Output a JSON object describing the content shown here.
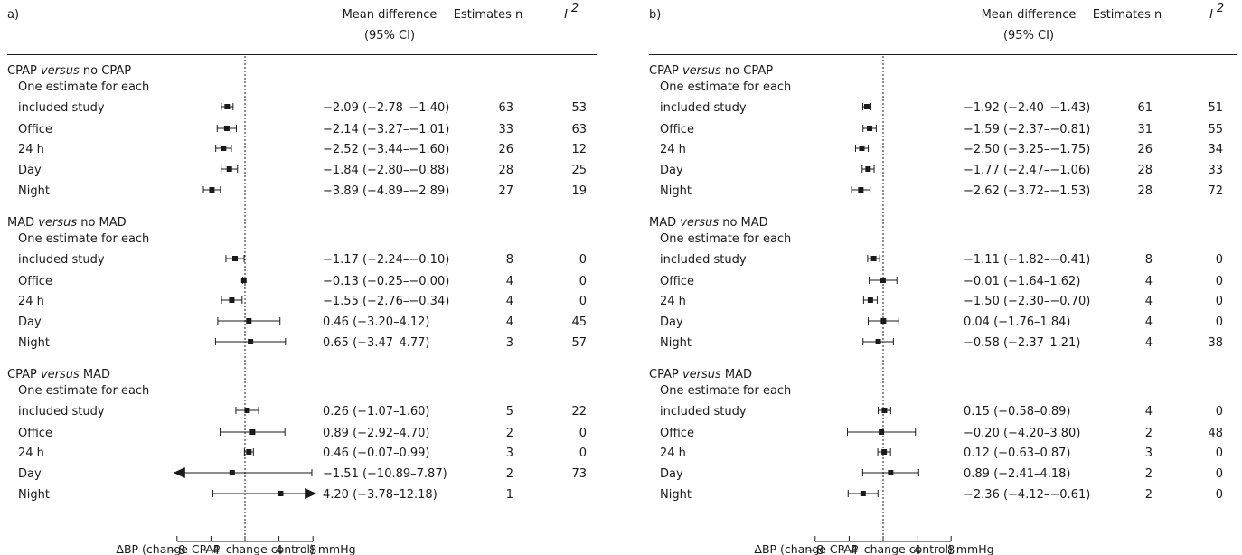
{
  "chart_data": [
    {
      "type": "forest",
      "panel_label": "a)",
      "columns": {
        "effect": "Mean difference",
        "effect_sub": "(95% CI)",
        "n": "Estimates n",
        "i2": "I",
        "i2_sup": "2"
      },
      "xlabel": "ΔBP (change CPAP–change control) mmHg",
      "xlim": [
        -8,
        8
      ],
      "ticks": [
        -8,
        -4,
        4,
        8
      ],
      "reference_line": 0,
      "groups": [
        {
          "label_pre": "CPAP ",
          "label_em": "versus",
          "label_post": " no CPAP",
          "rows": [
            {
              "label": [
                "One estimate for each",
                "included study"
              ],
              "mean": -2.09,
              "lo": -2.78,
              "hi": -1.4,
              "ci_text": "−2.09 (−2.78–−1.40)",
              "n": "63",
              "i2": "53"
            },
            {
              "label": [
                "Office"
              ],
              "mean": -2.14,
              "lo": -3.27,
              "hi": -1.01,
              "ci_text": "−2.14 (−3.27–−1.01)",
              "n": "33",
              "i2": "63"
            },
            {
              "label": [
                "24 h"
              ],
              "mean": -2.52,
              "lo": -3.44,
              "hi": -1.6,
              "ci_text": "−2.52 (−3.44–−1.60)",
              "n": "26",
              "i2": "12"
            },
            {
              "label": [
                "Day"
              ],
              "mean": -1.84,
              "lo": -2.8,
              "hi": -0.88,
              "ci_text": "−1.84 (−2.80–−0.88)",
              "n": "28",
              "i2": "25"
            },
            {
              "label": [
                "Night"
              ],
              "mean": -3.89,
              "lo": -4.89,
              "hi": -2.89,
              "ci_text": "−3.89 (−4.89–−2.89)",
              "n": "27",
              "i2": "19"
            }
          ]
        },
        {
          "label_pre": "MAD ",
          "label_em": "versus",
          "label_post": " no MAD",
          "rows": [
            {
              "label": [
                "One estimate for each",
                "included study"
              ],
              "mean": -1.17,
              "lo": -2.24,
              "hi": -0.1,
              "ci_text": "−1.17 (−2.24–−0.10)",
              "n": "8",
              "i2": "0"
            },
            {
              "label": [
                "Office"
              ],
              "mean": -0.13,
              "lo": -0.25,
              "hi": -0.0,
              "ci_text": "−0.13 (−0.25–−0.00)",
              "n": "4",
              "i2": "0"
            },
            {
              "label": [
                "24 h"
              ],
              "mean": -1.55,
              "lo": -2.76,
              "hi": -0.34,
              "ci_text": "−1.55 (−2.76–−0.34)",
              "n": "4",
              "i2": "0"
            },
            {
              "label": [
                "Day"
              ],
              "mean": 0.46,
              "lo": -3.2,
              "hi": 4.12,
              "ci_text": "0.46 (−3.20–4.12)",
              "n": "4",
              "i2": "45"
            },
            {
              "label": [
                "Night"
              ],
              "mean": 0.65,
              "lo": -3.47,
              "hi": 4.77,
              "ci_text": "0.65 (−3.47–4.77)",
              "n": "3",
              "i2": "57"
            }
          ]
        },
        {
          "label_pre": "CPAP ",
          "label_em": "versus",
          "label_post": " MAD",
          "rows": [
            {
              "label": [
                "One estimate for each",
                "included study"
              ],
              "mean": 0.26,
              "lo": -1.07,
              "hi": 1.6,
              "ci_text": "0.26 (−1.07–1.60)",
              "n": "5",
              "i2": "22"
            },
            {
              "label": [
                "Office"
              ],
              "mean": 0.89,
              "lo": -2.92,
              "hi": 4.7,
              "ci_text": "0.89 (−2.92–4.70)",
              "n": "2",
              "i2": "0"
            },
            {
              "label": [
                "24 h"
              ],
              "mean": 0.46,
              "lo": -0.07,
              "hi": 0.99,
              "ci_text": "0.46 (−0.07–0.99)",
              "n": "3",
              "i2": "0"
            },
            {
              "label": [
                "Day"
              ],
              "mean": -1.51,
              "lo": -10.89,
              "hi": 7.87,
              "ci_text": "−1.51 (−10.89–7.87)",
              "n": "2",
              "i2": "73"
            },
            {
              "label": [
                "Night"
              ],
              "mean": 4.2,
              "lo": -3.78,
              "hi": 12.18,
              "ci_text": "4.20 (−3.78–12.18)",
              "n": "1",
              "i2": ""
            }
          ]
        }
      ]
    },
    {
      "type": "forest",
      "panel_label": "b)",
      "columns": {
        "effect": "Mean difference",
        "effect_sub": "(95% CI)",
        "n": "Estimates n",
        "i2": "I",
        "i2_sup": "2"
      },
      "xlabel": "ΔBP (change CPAP–change control) mmHg",
      "xlim": [
        -8,
        8
      ],
      "ticks": [
        -8,
        -4,
        4,
        8
      ],
      "reference_line": 0,
      "groups": [
        {
          "label_pre": "CPAP ",
          "label_em": "versus",
          "label_post": " no CPAP",
          "rows": [
            {
              "label": [
                "One estimate for each",
                "included study"
              ],
              "mean": -1.92,
              "lo": -2.4,
              "hi": -1.43,
              "ci_text": "−1.92 (−2.40–−1.43)",
              "n": "61",
              "i2": "51"
            },
            {
              "label": [
                "Office"
              ],
              "mean": -1.59,
              "lo": -2.37,
              "hi": -0.81,
              "ci_text": "−1.59 (−2.37–−0.81)",
              "n": "31",
              "i2": "55"
            },
            {
              "label": [
                "24 h"
              ],
              "mean": -2.5,
              "lo": -3.25,
              "hi": -1.75,
              "ci_text": "−2.50 (−3.25–−1.75)",
              "n": "26",
              "i2": "34"
            },
            {
              "label": [
                "Day"
              ],
              "mean": -1.77,
              "lo": -2.47,
              "hi": -1.06,
              "ci_text": "−1.77 (−2.47–−1.06)",
              "n": "28",
              "i2": "33"
            },
            {
              "label": [
                "Night"
              ],
              "mean": -2.62,
              "lo": -3.72,
              "hi": -1.53,
              "ci_text": "−2.62 (−3.72–−1.53)",
              "n": "28",
              "i2": "72"
            }
          ]
        },
        {
          "label_pre": "MAD ",
          "label_em": "versus",
          "label_post": " no MAD",
          "rows": [
            {
              "label": [
                "One estimate for each",
                "included study"
              ],
              "mean": -1.11,
              "lo": -1.82,
              "hi": -0.41,
              "ci_text": "−1.11 (−1.82–−0.41)",
              "n": "8",
              "i2": "0"
            },
            {
              "label": [
                "Office"
              ],
              "mean": -0.01,
              "lo": -1.64,
              "hi": 1.62,
              "ci_text": "−0.01 (−1.64–1.62)",
              "n": "4",
              "i2": "0"
            },
            {
              "label": [
                "24 h"
              ],
              "mean": -1.5,
              "lo": -2.3,
              "hi": -0.7,
              "ci_text": "−1.50 (−2.30–−0.70)",
              "n": "4",
              "i2": "0"
            },
            {
              "label": [
                "Day"
              ],
              "mean": 0.04,
              "lo": -1.76,
              "hi": 1.84,
              "ci_text": "0.04 (−1.76–1.84)",
              "n": "4",
              "i2": "0"
            },
            {
              "label": [
                "Night"
              ],
              "mean": -0.58,
              "lo": -2.37,
              "hi": 1.21,
              "ci_text": "−0.58 (−2.37–1.21)",
              "n": "4",
              "i2": "38"
            }
          ]
        },
        {
          "label_pre": "CPAP ",
          "label_em": "versus",
          "label_post": " MAD",
          "rows": [
            {
              "label": [
                "One estimate for each",
                "included study"
              ],
              "mean": 0.15,
              "lo": -0.58,
              "hi": 0.89,
              "ci_text": "0.15 (−0.58–0.89)",
              "n": "4",
              "i2": "0"
            },
            {
              "label": [
                "Office"
              ],
              "mean": -0.2,
              "lo": -4.2,
              "hi": 3.8,
              "ci_text": "−0.20 (−4.20–3.80)",
              "n": "2",
              "i2": "48"
            },
            {
              "label": [
                "24 h"
              ],
              "mean": 0.12,
              "lo": -0.63,
              "hi": 0.87,
              "ci_text": "0.12 (−0.63–0.87)",
              "n": "3",
              "i2": "0"
            },
            {
              "label": [
                "Day"
              ],
              "mean": 0.89,
              "lo": -2.41,
              "hi": 4.18,
              "ci_text": "0.89 (−2.41–4.18)",
              "n": "2",
              "i2": "0"
            },
            {
              "label": [
                "Night"
              ],
              "mean": -2.36,
              "lo": -4.12,
              "hi": -0.61,
              "ci_text": "−2.36 (−4.12–−0.61)",
              "n": "2",
              "i2": "0"
            }
          ]
        }
      ]
    }
  ]
}
